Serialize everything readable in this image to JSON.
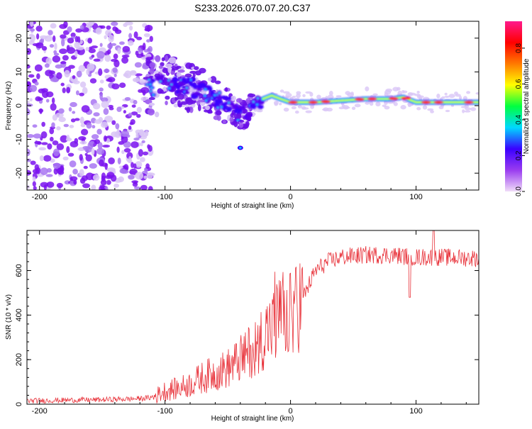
{
  "title": "S233.2026.070.07.20.C37",
  "colors": {
    "trace": "#e8323a",
    "axis": "#000000",
    "purple_dark": "#7a12ee",
    "purple_light": "#cdb6f4"
  },
  "chart_data": [
    {
      "type": "heatmap",
      "name": "spectrogram",
      "xlabel": "Height of straight line (km)",
      "ylabel": "Frequency (Hz)",
      "xlim": [
        -210,
        150
      ],
      "ylim": [
        -25,
        25
      ],
      "x_ticks": [
        "-200",
        "-100",
        "0",
        "100"
      ],
      "x_tick_values": [
        -200,
        -100,
        0,
        100
      ],
      "y_ticks": [
        "20",
        "10",
        "0",
        "-10",
        "-20"
      ],
      "y_tick_values": [
        20,
        10,
        0,
        -10,
        -20
      ],
      "ridge": {
        "description_points_x": [
          -115,
          -105,
          -95,
          -85,
          -75,
          -65,
          -55,
          -45,
          -38,
          -30,
          -22,
          -15,
          -8,
          0,
          20,
          40,
          60,
          80,
          90,
          100,
          120,
          140,
          150
        ],
        "description_points_freq": [
          5,
          6,
          7,
          6,
          5,
          3,
          1,
          -1,
          -3,
          0,
          2,
          3,
          2,
          1,
          1,
          1.5,
          2,
          2,
          2.5,
          1,
          1,
          1,
          1
        ]
      },
      "colorbar": {
        "label": "Normalized spectral amplitude",
        "range": [
          0,
          0.95
        ],
        "ticks": [
          "0.0",
          "0.2",
          "0.4",
          "0.6",
          "0.8"
        ],
        "tick_values": [
          0,
          0.2,
          0.4,
          0.6,
          0.8
        ],
        "stops": [
          "#f0dcf8",
          "#9a3cf0",
          "#3a00ff",
          "#00d8ff",
          "#00ff40",
          "#ffff00",
          "#ff7a00",
          "#ff0000",
          "#ff1a8c"
        ]
      }
    },
    {
      "type": "line",
      "name": "snr",
      "xlabel": "Height of straight line (km)",
      "ylabel": "SNR (10 * v/v)",
      "xlim": [
        -210,
        150
      ],
      "ylim": [
        0,
        780
      ],
      "x_ticks": [
        "-200",
        "-100",
        "0",
        "100"
      ],
      "x_tick_values": [
        -200,
        -100,
        0,
        100
      ],
      "y_ticks": [
        "0",
        "200",
        "400",
        "600"
      ],
      "y_tick_values": [
        0,
        200,
        400,
        600
      ],
      "x": [
        -210,
        -180,
        -150,
        -120,
        -110,
        -100,
        -90,
        -80,
        -70,
        -60,
        -50,
        -40,
        -30,
        -20,
        -10,
        0,
        10,
        20,
        30,
        40,
        60,
        80,
        100,
        120,
        150
      ],
      "y": [
        15,
        18,
        20,
        25,
        30,
        60,
        70,
        90,
        120,
        140,
        160,
        200,
        250,
        320,
        380,
        400,
        480,
        600,
        640,
        660,
        670,
        670,
        660,
        660,
        655
      ]
    }
  ]
}
